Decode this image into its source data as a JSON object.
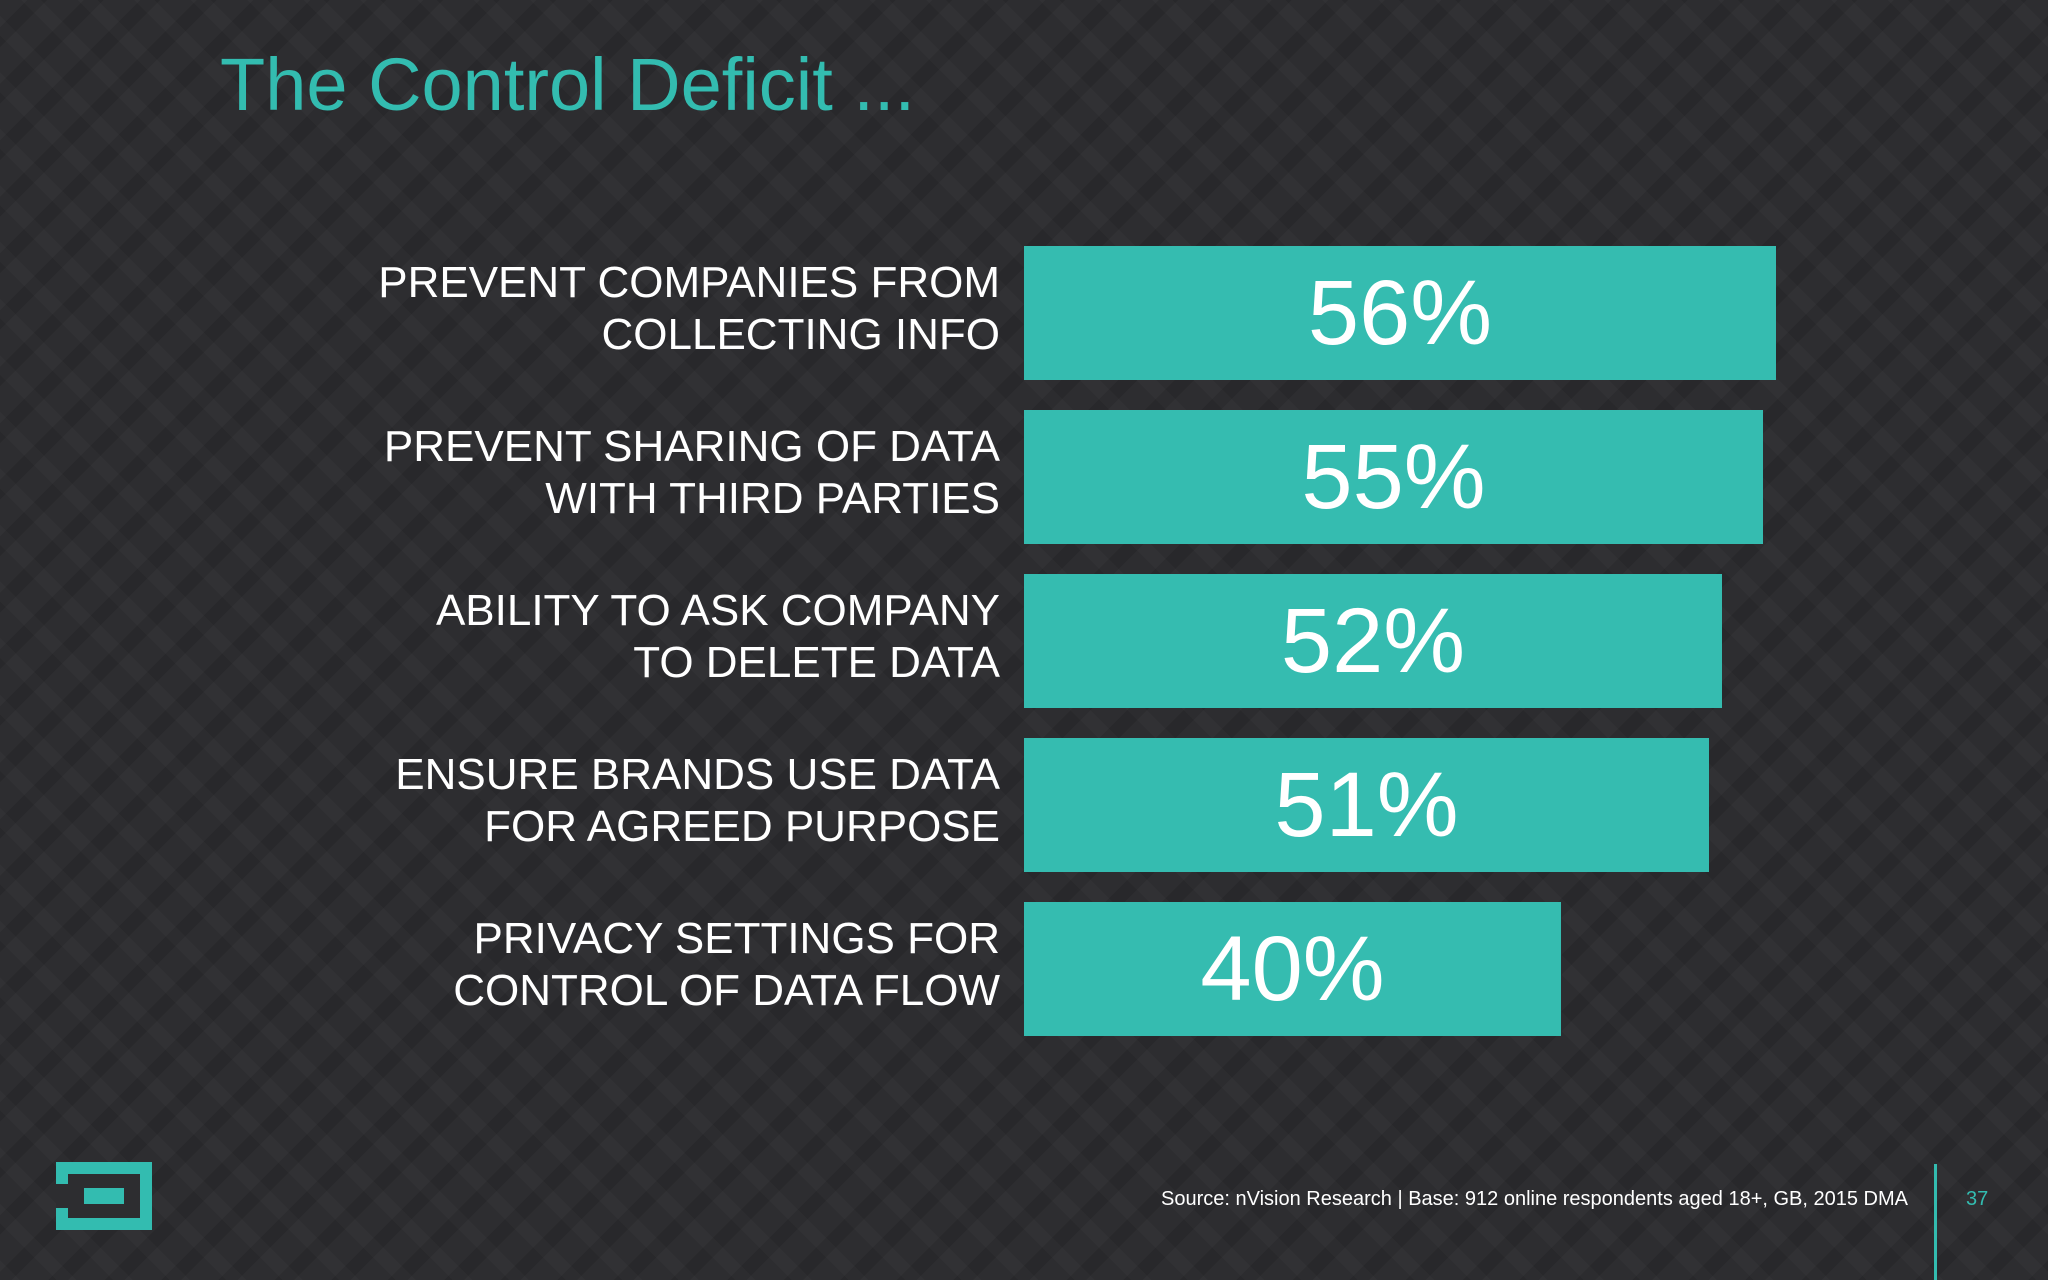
{
  "slide": {
    "title": "The Control Deficit ...",
    "source": "Source: nVision Research | Base: 912 online respondents aged 18+, GB, 2015 DMA",
    "page_number": "37",
    "logo_icon": "square-bracket-logo-icon"
  },
  "colors": {
    "background": "#2d2d30",
    "accent": "#35bcb0",
    "text": "#ffffff"
  },
  "chart_data": {
    "type": "bar",
    "orientation": "horizontal",
    "categories": [
      "PREVENT COMPANIES FROM\nCOLLECTING INFO",
      "PREVENT SHARING OF DATA\nWITH THIRD PARTIES",
      "ABILITY  TO ASK COMPANY\nTO DELETE DATA",
      "ENSURE BRANDS USE DATA\nFOR AGREED PURPOSE",
      "PRIVACY SETTINGS FOR\nCONTROL OF DATA FLOW"
    ],
    "values": [
      56,
      55,
      52,
      51,
      40
    ],
    "value_labels": [
      "56%",
      "55%",
      "52%",
      "51%",
      "40%"
    ],
    "xlim": [
      0,
      100
    ],
    "grid": false,
    "legend": "none"
  }
}
